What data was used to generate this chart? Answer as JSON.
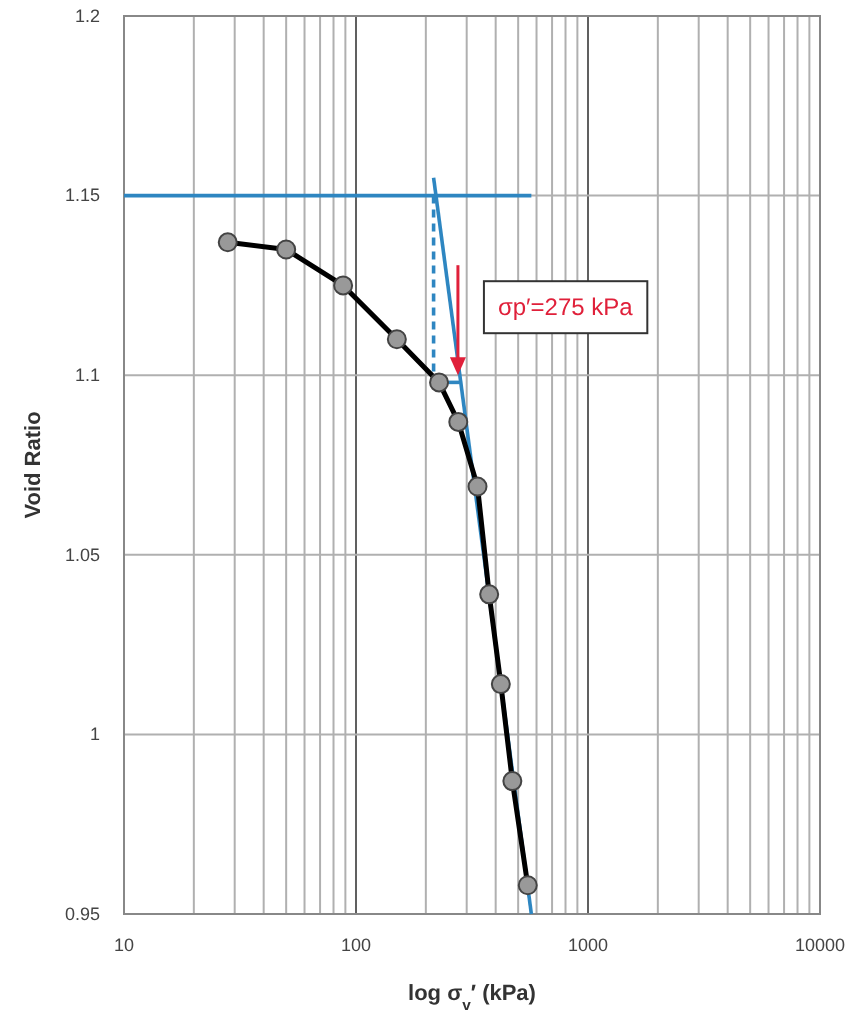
{
  "chart_data": {
    "type": "line",
    "xlabel": "log σ$_{v}$′ (kPa)",
    "ylabel": "Void Ratio",
    "log": "x",
    "grid": true,
    "xlim": [
      10,
      10000
    ],
    "ylim": [
      0.95,
      1.2
    ],
    "xticks": [
      10,
      {
        "value": 20,
        "label": null
      },
      {
        "value": 30,
        "label": null
      },
      {
        "value": 40,
        "label": null
      },
      {
        "value": 50,
        "label": null
      },
      {
        "value": 60,
        "label": null
      },
      {
        "value": 70,
        "label": null
      },
      {
        "value": 80,
        "label": null
      },
      {
        "value": 90,
        "label": null
      },
      100,
      {
        "value": 200,
        "label": null
      },
      {
        "value": 300,
        "label": null
      },
      {
        "value": 400,
        "label": null
      },
      {
        "value": 500,
        "label": null
      },
      {
        "value": 600,
        "label": null
      },
      {
        "value": 700,
        "label": null
      },
      {
        "value": 800,
        "label": null
      },
      {
        "value": 900,
        "label": null
      },
      1000,
      {
        "value": 2000,
        "label": null
      },
      {
        "value": 3000,
        "label": null
      },
      {
        "value": 4000,
        "label": null
      },
      {
        "value": 5000,
        "label": null
      },
      {
        "value": 6000,
        "label": null
      },
      {
        "value": 7000,
        "label": null
      },
      {
        "value": 8000,
        "label": null
      },
      {
        "value": 9000,
        "label": null
      },
      10000
    ],
    "yticks": [
      0.95,
      1,
      1.05,
      1.1,
      1.15,
      1.2
    ],
    "series": [
      {
        "color": "#000000",
        "marker": "circle",
        "line_style": "solid",
        "x": [
          28,
          50,
          88,
          150,
          228,
          276,
          334,
          375,
          421,
          472,
          550
        ],
        "values": [
          1.137,
          1.135,
          1.125,
          1.11,
          1.098,
          1.087,
          1.069,
          1.039,
          1.014,
          0.987,
          0.958
        ]
      },
      {
        "color": "#2e86c1",
        "marker": "none",
        "line_style": "solid",
        "x": [
          10,
          570
        ],
        "values": [
          1.15,
          1.15
        ]
      },
      {
        "color": "#2e86c1",
        "marker": "none",
        "line_style": "solid",
        "x": [
          216,
          570
        ],
        "values": [
          1.155,
          0.95
        ]
      },
      {
        "color": "#2e86c1",
        "marker": "none",
        "line_style": "dashed",
        "x": [
          216,
          216
        ],
        "values": [
          1.15,
          1.098
        ]
      },
      {
        "color": "#2e86c1",
        "marker": "none",
        "line_style": "solid",
        "x": [
          228,
          280
        ],
        "values": [
          1.098,
          1.098
        ]
      }
    ],
    "annotations": [
      {
        "text": "σp′=275 kPa",
        "x": 275,
        "y": 1.1
      }
    ]
  }
}
